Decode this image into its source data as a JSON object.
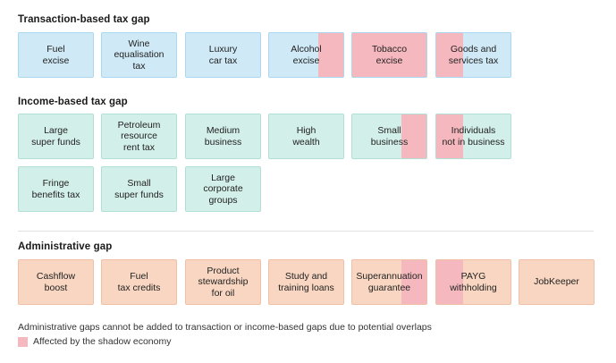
{
  "sections": [
    {
      "title": "Transaction-based tax gap",
      "kind": "transaction",
      "rows": [
        [
          {
            "label": "Fuel\nexcise",
            "shadow": "none"
          },
          {
            "label": "Wine\nequalisation\ntax",
            "shadow": "none"
          },
          {
            "label": "Luxury\ncar tax",
            "shadow": "none"
          },
          {
            "label": "Alcohol\nexcise",
            "shadow": "right"
          },
          {
            "label": "Tobacco\nexcise",
            "shadow": "full"
          },
          {
            "label": "Goods and\nservices tax",
            "shadow": "left"
          }
        ]
      ]
    },
    {
      "title": "Income-based tax gap",
      "kind": "income",
      "rows": [
        [
          {
            "label": "Large\nsuper funds",
            "shadow": "none"
          },
          {
            "label": "Petroleum\nresource\nrent tax",
            "shadow": "none"
          },
          {
            "label": "Medium\nbusiness",
            "shadow": "none"
          },
          {
            "label": "High\nwealth",
            "shadow": "none"
          },
          {
            "label": "Small\nbusiness",
            "shadow": "right"
          },
          {
            "label": "Individuals\nnot in business",
            "shadow": "left"
          }
        ],
        [
          {
            "label": "Fringe\nbenefits tax",
            "shadow": "none"
          },
          {
            "label": "Small\nsuper funds",
            "shadow": "none"
          },
          {
            "label": "Large\ncorporate\ngroups",
            "shadow": "none"
          }
        ]
      ]
    },
    {
      "title": "Administrative gap",
      "kind": "admin",
      "rows": [
        [
          {
            "label": "Cashflow\nboost",
            "shadow": "none"
          },
          {
            "label": "Fuel\ntax credits",
            "shadow": "none"
          },
          {
            "label": "Product\nstewardship\nfor oil",
            "shadow": "none"
          },
          {
            "label": "Study and\ntraining loans",
            "shadow": "none"
          },
          {
            "label": "Superannuation\nguarantee",
            "shadow": "right"
          },
          {
            "label": "PAYG\nwithholding",
            "shadow": "left"
          },
          {
            "label": "JobKeeper",
            "shadow": "none"
          }
        ]
      ]
    }
  ],
  "note": "Administrative gaps cannot be added to transaction or income-based gaps due to potential overlaps",
  "legend": {
    "label": "Affected by the shadow economy",
    "color": "#f5b8be"
  }
}
